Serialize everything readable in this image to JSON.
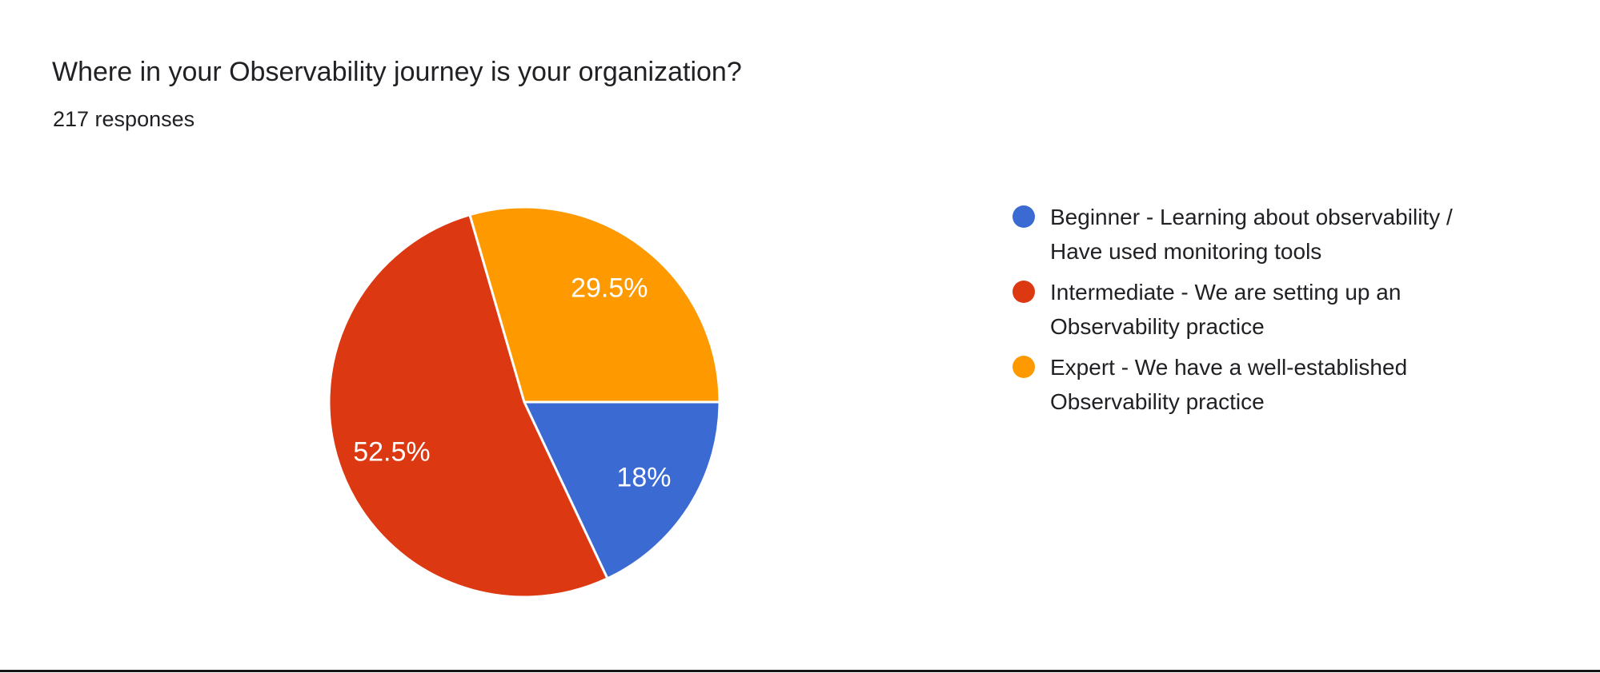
{
  "header": {
    "title": "Where in your Observability journey is your organization?",
    "responses": "217 responses"
  },
  "colors": {
    "background": "#FFFFFF",
    "title_text": "#202124",
    "legend_text": "#202124",
    "slice_separator": "#FFFFFF",
    "bottom_border": "#161616",
    "blue": "#3B6BD2",
    "red": "#DC3912",
    "orange": "#FF9900"
  },
  "chart_data": {
    "type": "pie",
    "title": "Where in your Observability journey is your organization?",
    "subtitle": "217 responses",
    "start_angle_deg": 90,
    "direction": "clockwise",
    "label_color": "#FFFFFF",
    "legend_position": "right",
    "slices": [
      {
        "label": "Beginner - Learning about observability / Have used monitoring tools",
        "value_pct": 18,
        "display": "18%",
        "color": "#3B6BD2"
      },
      {
        "label": "Intermediate - We are setting up an Observability practice",
        "value_pct": 52.5,
        "display": "52.5%",
        "color": "#DC3912"
      },
      {
        "label": "Expert - We have a well-established Observability practice",
        "value_pct": 29.5,
        "display": "29.5%",
        "color": "#FF9900"
      }
    ]
  },
  "legend": {
    "items": [
      {
        "color": "#3B6BD2",
        "line1": "Beginner - Learning about observability /",
        "line2": "Have used monitoring tools"
      },
      {
        "color": "#DC3912",
        "line1": "Intermediate - We are setting up an",
        "line2": "Observability practice"
      },
      {
        "color": "#FF9900",
        "line1": "Expert - We have a well-established",
        "line2": "Observability practice"
      }
    ]
  }
}
